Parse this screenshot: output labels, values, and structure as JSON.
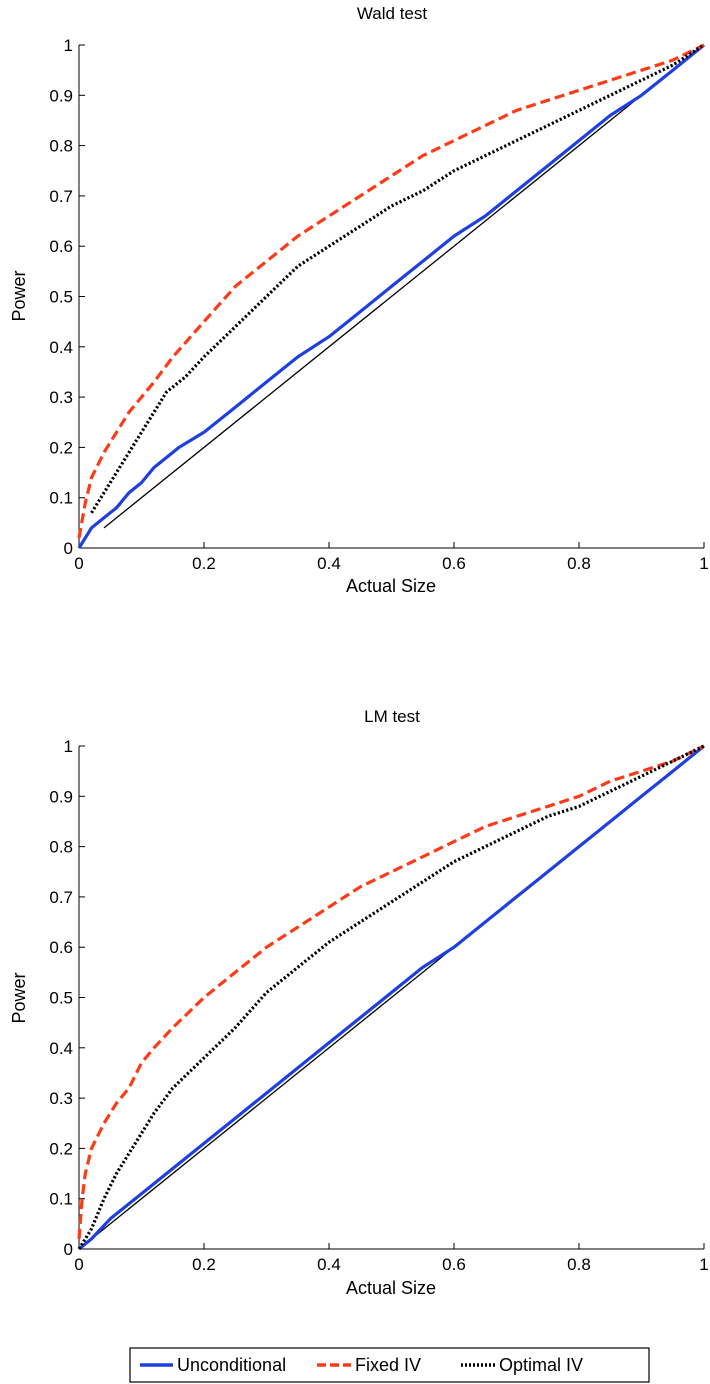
{
  "chart_data": [
    {
      "type": "line",
      "title": "Wald test",
      "xlabel": "Actual Size",
      "ylabel": "Power",
      "xlim": [
        0,
        1
      ],
      "ylim": [
        0,
        1
      ],
      "xticks": [
        "0",
        "0.2",
        "0.4",
        "0.6",
        "0.8",
        "1"
      ],
      "yticks": [
        "0",
        "0.1",
        "0.2",
        "0.3",
        "0.4",
        "0.5",
        "0.6",
        "0.7",
        "0.8",
        "0.9",
        "1"
      ],
      "grid": false,
      "reference_line": {
        "x": [
          0.04,
          1
        ],
        "y": [
          0.04,
          1
        ],
        "color": "#000000"
      },
      "series": [
        {
          "name": "Unconditional",
          "color": "#1f3fe0",
          "style": "solid",
          "x": [
            0,
            0.01,
            0.02,
            0.04,
            0.06,
            0.08,
            0.1,
            0.12,
            0.14,
            0.16,
            0.2,
            0.25,
            0.3,
            0.35,
            0.4,
            0.45,
            0.5,
            0.55,
            0.6,
            0.65,
            0.7,
            0.75,
            0.8,
            0.85,
            0.9,
            0.95,
            1
          ],
          "y": [
            0,
            0.02,
            0.04,
            0.06,
            0.08,
            0.11,
            0.13,
            0.16,
            0.18,
            0.2,
            0.23,
            0.28,
            0.33,
            0.38,
            0.42,
            0.47,
            0.52,
            0.57,
            0.62,
            0.66,
            0.71,
            0.76,
            0.81,
            0.86,
            0.9,
            0.95,
            1
          ]
        },
        {
          "name": "Fixed IV",
          "color": "#ff3a17",
          "style": "dashed",
          "x": [
            0,
            0.01,
            0.02,
            0.04,
            0.06,
            0.08,
            0.1,
            0.12,
            0.15,
            0.2,
            0.25,
            0.3,
            0.35,
            0.4,
            0.45,
            0.5,
            0.55,
            0.6,
            0.65,
            0.7,
            0.75,
            0.8,
            0.85,
            0.9,
            0.95,
            1
          ],
          "y": [
            0.02,
            0.09,
            0.14,
            0.19,
            0.23,
            0.27,
            0.3,
            0.33,
            0.38,
            0.45,
            0.52,
            0.57,
            0.62,
            0.66,
            0.7,
            0.74,
            0.78,
            0.81,
            0.84,
            0.87,
            0.89,
            0.91,
            0.93,
            0.95,
            0.97,
            1
          ]
        },
        {
          "name": "Optimal IV",
          "color": "#000000",
          "style": "dotted",
          "x": [
            0.02,
            0.04,
            0.06,
            0.08,
            0.1,
            0.12,
            0.14,
            0.17,
            0.2,
            0.25,
            0.3,
            0.35,
            0.4,
            0.45,
            0.5,
            0.55,
            0.6,
            0.65,
            0.7,
            0.75,
            0.8,
            0.85,
            0.9,
            0.95,
            1
          ],
          "y": [
            0.07,
            0.11,
            0.15,
            0.19,
            0.23,
            0.27,
            0.31,
            0.34,
            0.38,
            0.44,
            0.5,
            0.56,
            0.6,
            0.64,
            0.68,
            0.71,
            0.75,
            0.78,
            0.81,
            0.84,
            0.87,
            0.9,
            0.93,
            0.96,
            1
          ]
        }
      ]
    },
    {
      "type": "line",
      "title": "LM test",
      "xlabel": "Actual Size",
      "ylabel": "Power",
      "xlim": [
        0,
        1
      ],
      "ylim": [
        0,
        1
      ],
      "xticks": [
        "0",
        "0.2",
        "0.4",
        "0.6",
        "0.8",
        "1"
      ],
      "yticks": [
        "0",
        "0.1",
        "0.2",
        "0.3",
        "0.4",
        "0.5",
        "0.6",
        "0.7",
        "0.8",
        "0.9",
        "1"
      ],
      "grid": false,
      "reference_line": {
        "x": [
          0,
          1
        ],
        "y": [
          0,
          1
        ],
        "color": "#000000"
      },
      "series": [
        {
          "name": "Unconditional",
          "color": "#1f3fe0",
          "style": "solid",
          "x": [
            0,
            0.02,
            0.05,
            0.1,
            0.15,
            0.2,
            0.25,
            0.3,
            0.35,
            0.4,
            0.45,
            0.5,
            0.55,
            0.6,
            0.65,
            0.7,
            0.75,
            0.8,
            0.85,
            0.9,
            0.95,
            1
          ],
          "y": [
            0,
            0.02,
            0.06,
            0.11,
            0.16,
            0.21,
            0.26,
            0.31,
            0.36,
            0.41,
            0.46,
            0.51,
            0.56,
            0.6,
            0.65,
            0.7,
            0.75,
            0.8,
            0.85,
            0.9,
            0.95,
            1
          ]
        },
        {
          "name": "Fixed IV",
          "color": "#ff3a17",
          "style": "dashed",
          "x": [
            0,
            0.005,
            0.01,
            0.02,
            0.04,
            0.06,
            0.08,
            0.1,
            0.12,
            0.15,
            0.2,
            0.25,
            0.3,
            0.35,
            0.4,
            0.45,
            0.5,
            0.55,
            0.6,
            0.65,
            0.7,
            0.75,
            0.8,
            0.85,
            0.9,
            0.95,
            1
          ],
          "y": [
            0.02,
            0.1,
            0.15,
            0.2,
            0.25,
            0.29,
            0.32,
            0.37,
            0.4,
            0.44,
            0.5,
            0.55,
            0.6,
            0.64,
            0.68,
            0.72,
            0.75,
            0.78,
            0.81,
            0.84,
            0.86,
            0.88,
            0.9,
            0.93,
            0.95,
            0.97,
            1
          ]
        },
        {
          "name": "Optimal IV",
          "color": "#000000",
          "style": "dotted",
          "x": [
            0,
            0.02,
            0.04,
            0.06,
            0.08,
            0.1,
            0.12,
            0.15,
            0.2,
            0.25,
            0.3,
            0.35,
            0.4,
            0.45,
            0.5,
            0.55,
            0.6,
            0.65,
            0.7,
            0.75,
            0.8,
            0.85,
            0.9,
            0.95,
            1
          ],
          "y": [
            0,
            0.04,
            0.1,
            0.15,
            0.19,
            0.23,
            0.27,
            0.32,
            0.38,
            0.44,
            0.51,
            0.56,
            0.61,
            0.65,
            0.69,
            0.73,
            0.77,
            0.8,
            0.83,
            0.86,
            0.88,
            0.91,
            0.94,
            0.97,
            1
          ]
        }
      ]
    }
  ],
  "legend": {
    "placement": "bottom-center",
    "items": [
      {
        "label": "Unconditional",
        "color": "#1f3fe0",
        "style": "solid"
      },
      {
        "label": "Fixed IV",
        "color": "#ff3a17",
        "style": "dashed"
      },
      {
        "label": "Optimal IV",
        "color": "#000000",
        "style": "dotted"
      }
    ]
  }
}
